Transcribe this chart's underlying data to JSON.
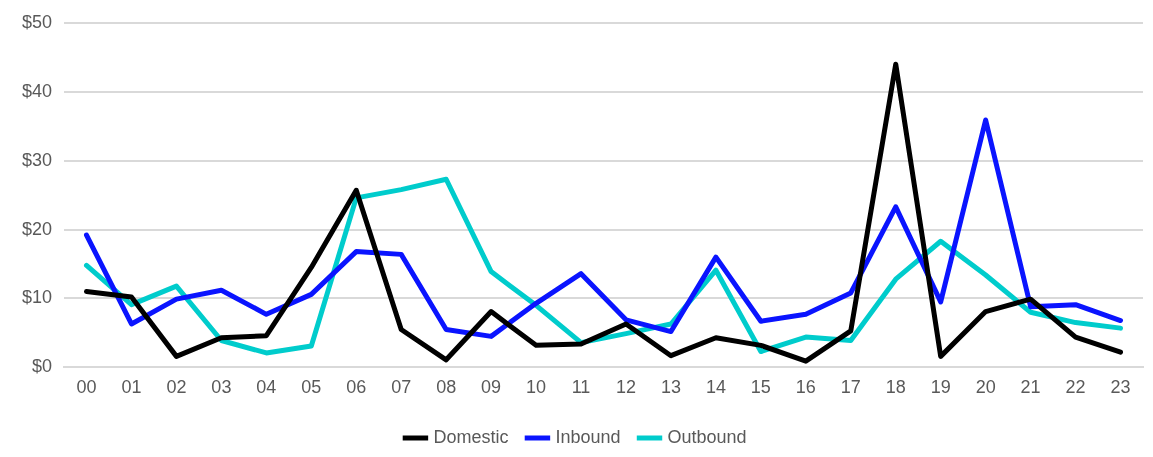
{
  "chart_data": {
    "type": "line",
    "categories": [
      "00",
      "01",
      "02",
      "03",
      "04",
      "05",
      "06",
      "07",
      "08",
      "09",
      "10",
      "11",
      "12",
      "13",
      "14",
      "15",
      "16",
      "17",
      "18",
      "19",
      "20",
      "21",
      "22",
      "23"
    ],
    "series": [
      {
        "name": "Domestic",
        "color": "#000000",
        "values": [
          11,
          10.2,
          1.6,
          4.3,
          4.6,
          14.5,
          25.7,
          5.5,
          1.1,
          8.1,
          3.2,
          3.4,
          6.3,
          1.7,
          4.3,
          3.2,
          0.9,
          5.3,
          44,
          1.6,
          8.1,
          9.9,
          4.4,
          2.2
        ]
      },
      {
        "name": "Inbound",
        "color": "#0a14ff",
        "values": [
          19.2,
          6.3,
          9.9,
          11.2,
          7.7,
          10.6,
          16.8,
          16.4,
          5.5,
          4.5,
          9.3,
          13.6,
          6.9,
          5.2,
          16,
          6.7,
          7.7,
          10.8,
          23.3,
          9.5,
          35.9,
          8.8,
          9.1,
          6.8
        ]
      },
      {
        "name": "Outbound",
        "color": "#00cccc",
        "values": [
          14.8,
          9.1,
          11.8,
          3.9,
          2.1,
          3.1,
          24.6,
          25.8,
          27.3,
          13.9,
          9,
          3.6,
          4.9,
          6.3,
          14.1,
          2.3,
          4.4,
          3.9,
          12.8,
          18.3,
          13.4,
          8,
          6.5,
          5.7
        ]
      }
    ],
    "ylim": [
      0,
      50
    ],
    "yticks": [
      {
        "value": 0,
        "label": "$0"
      },
      {
        "value": 10,
        "label": "$10"
      },
      {
        "value": 20,
        "label": "$20"
      },
      {
        "value": 30,
        "label": "$30"
      },
      {
        "value": 40,
        "label": "$40"
      },
      {
        "value": 50,
        "label": "$50"
      }
    ],
    "grid": "y",
    "legend": "bottom",
    "marker": "none",
    "line_style": "solid"
  }
}
